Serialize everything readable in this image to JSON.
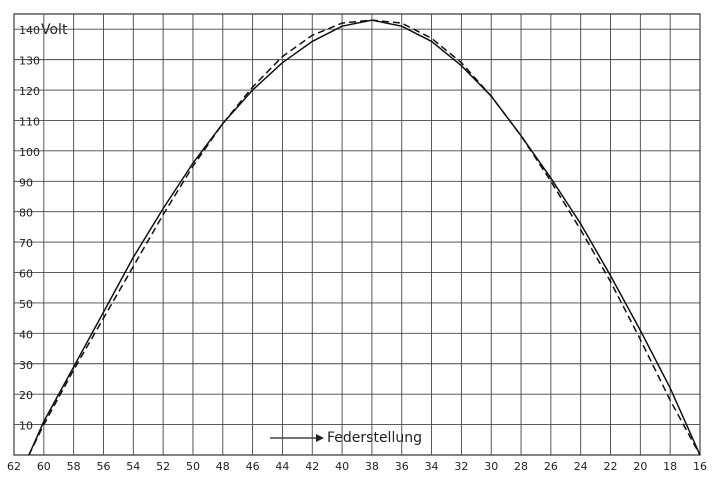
{
  "chart_data": {
    "type": "line",
    "annotations": [
      "Volt",
      "Federstellung"
    ],
    "x": [
      61,
      60,
      58,
      56,
      54,
      52,
      50,
      48,
      46,
      44,
      42,
      40,
      38,
      36,
      34,
      32,
      30,
      28,
      26,
      24,
      22,
      20,
      18,
      16
    ],
    "series": [
      {
        "color": "#111111",
        "dash": "solid",
        "values": [
          0,
          11,
          29,
          47,
          65,
          81,
          96,
          109,
          120,
          129,
          136,
          141,
          143,
          141,
          136,
          128,
          118,
          105,
          91,
          76,
          59,
          41,
          22,
          0
        ]
      },
      {
        "color": "#111111",
        "dash": "dashed",
        "values": [
          0,
          10,
          28,
          45,
          62,
          79,
          95,
          109,
          121,
          131,
          138,
          142,
          143,
          142,
          137,
          129,
          118,
          105,
          90,
          74,
          57,
          38,
          18,
          0
        ]
      }
    ],
    "xlim": [
      62,
      16
    ],
    "xticks": [
      62,
      60,
      58,
      56,
      54,
      52,
      50,
      48,
      46,
      44,
      42,
      40,
      38,
      36,
      34,
      32,
      30,
      28,
      26,
      24,
      22,
      20,
      18,
      16
    ],
    "ylim": [
      0,
      145
    ],
    "yticks": [
      10,
      20,
      30,
      40,
      50,
      60,
      70,
      80,
      90,
      100,
      110,
      120,
      130,
      140
    ],
    "grid": true
  }
}
